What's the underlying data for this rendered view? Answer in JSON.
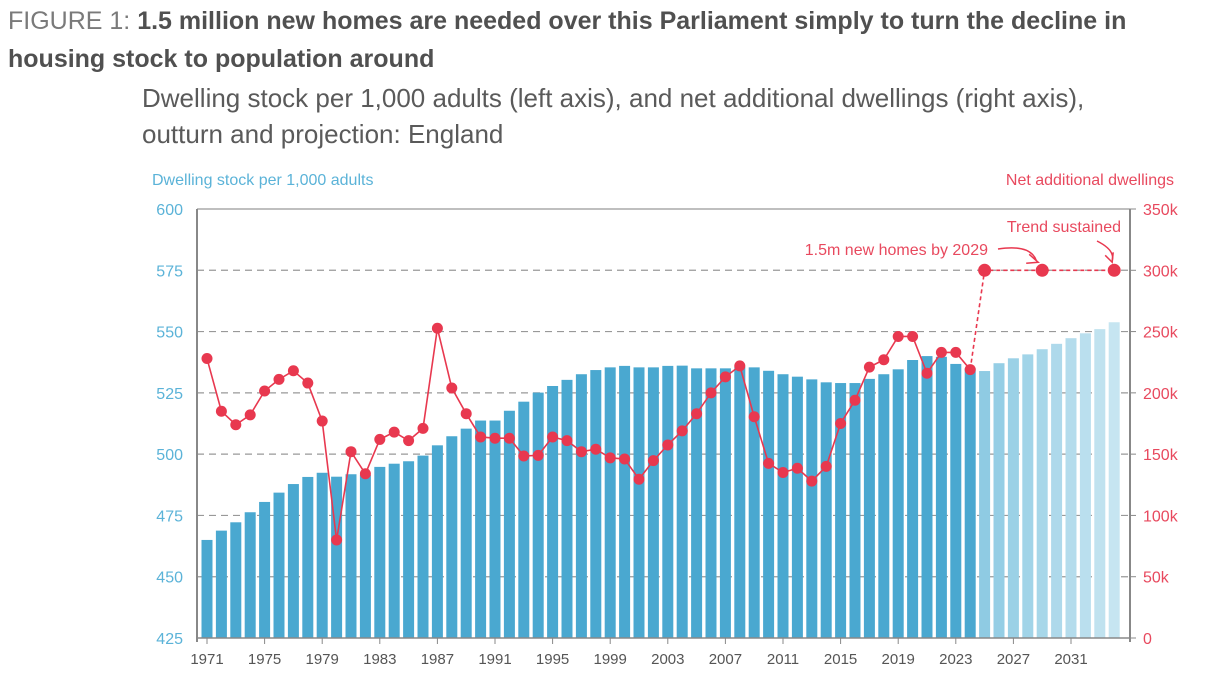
{
  "title": {
    "prefix": "FIGURE 1: ",
    "text": "1.5 million new homes are needed over this Parliament simply to turn the decline in housing stock to population around"
  },
  "subtitle": "Dwelling stock per 1,000 adults (left axis), and net additional dwellings (right axis), outturn and projection: England",
  "chart_data": {
    "type": "bar+line",
    "left_axis": {
      "label": "Dwelling stock per 1,000 adults",
      "ylim": [
        425,
        600
      ],
      "ticks": [
        425,
        450,
        475,
        500,
        525,
        550,
        575,
        600
      ],
      "color": "#5bb3d8"
    },
    "right_axis": {
      "label": "Net additional dwellings",
      "ylim": [
        0,
        350000
      ],
      "ticks": [
        "0",
        "50k",
        "100k",
        "150k",
        "200k",
        "250k",
        "300k",
        "350k"
      ],
      "color": "#e8495e"
    },
    "x_ticks": [
      "1971",
      "1975",
      "1979",
      "1983",
      "1987",
      "1991",
      "1995",
      "1999",
      "2003",
      "2007",
      "2011",
      "2015",
      "2019",
      "2023",
      "2027",
      "2031"
    ],
    "grid": "horizontal dashed",
    "bars": {
      "years": [
        1971,
        1972,
        1973,
        1974,
        1975,
        1976,
        1977,
        1978,
        1979,
        1980,
        1981,
        1982,
        1983,
        1984,
        1985,
        1986,
        1987,
        1988,
        1989,
        1990,
        1991,
        1992,
        1993,
        1994,
        1995,
        1996,
        1997,
        1998,
        1999,
        2000,
        2001,
        2002,
        2003,
        2004,
        2005,
        2006,
        2007,
        2008,
        2009,
        2010,
        2011,
        2012,
        2013,
        2014,
        2015,
        2016,
        2017,
        2018,
        2019,
        2020,
        2021,
        2022,
        2023,
        2024,
        2025,
        2026,
        2027,
        2028,
        2029,
        2030,
        2031,
        2032,
        2033,
        2034
      ],
      "values": [
        465,
        468.8,
        472.2,
        476.3,
        480.5,
        484.3,
        487.8,
        490.7,
        492.4,
        490.8,
        491.8,
        491.5,
        494.8,
        496.1,
        497.1,
        499.4,
        503.6,
        507.3,
        510.4,
        513.7,
        513.7,
        517.7,
        521.4,
        525.1,
        527.8,
        530.3,
        532.6,
        534.3,
        535.4,
        536,
        535.4,
        535.4,
        536,
        536.1,
        535,
        535,
        535,
        535.7,
        535.4,
        534,
        532.6,
        531.6,
        530.5,
        529.3,
        529,
        529,
        530.7,
        532.6,
        534.6,
        538.4,
        540,
        539.7,
        536.8,
        535,
        533.9,
        537.1,
        539.1,
        540.7,
        542.8,
        545,
        547.3,
        549.3,
        551,
        553.8
      ],
      "outturn_color": "#4aa8d0",
      "projection_from": 2025,
      "projection_colors": [
        "#8fcbe3",
        "#c6e5f1"
      ]
    },
    "line": {
      "years": [
        1971,
        1972,
        1973,
        1974,
        1975,
        1976,
        1977,
        1978,
        1979,
        1980,
        1981,
        1982,
        1983,
        1984,
        1985,
        1986,
        1987,
        1988,
        1989,
        1990,
        1991,
        1992,
        1993,
        1994,
        1995,
        1996,
        1997,
        1998,
        1999,
        2000,
        2001,
        2002,
        2003,
        2004,
        2005,
        2006,
        2007,
        2008,
        2009,
        2010,
        2011,
        2012,
        2013,
        2014,
        2015,
        2016,
        2017,
        2018,
        2019,
        2020,
        2021,
        2022,
        2023,
        2024
      ],
      "values": [
        228000,
        185000,
        174000,
        182000,
        201500,
        211000,
        218000,
        208000,
        177000,
        80000,
        152000,
        134000,
        162000,
        168000,
        161000,
        171000,
        252700,
        204000,
        183000,
        164000,
        163000,
        163000,
        148500,
        149000,
        164000,
        161000,
        152000,
        154000,
        147000,
        146000,
        129500,
        144700,
        157500,
        169000,
        183000,
        200000,
        213000,
        222000,
        180500,
        142500,
        135000,
        138500,
        128000,
        140000,
        175000,
        194000,
        221000,
        227000,
        246000,
        246000,
        216000,
        233000,
        233000,
        219000
      ],
      "color": "#e8384f"
    },
    "projection_line": {
      "years": [
        2025,
        2029,
        2034
      ],
      "values": [
        300000,
        300000,
        300000
      ],
      "style": "dashed"
    },
    "annotations": [
      {
        "text": "1.5m new homes by 2029",
        "target_year": 2029
      },
      {
        "text": "Trend sustained",
        "target_year": 2034
      }
    ]
  }
}
